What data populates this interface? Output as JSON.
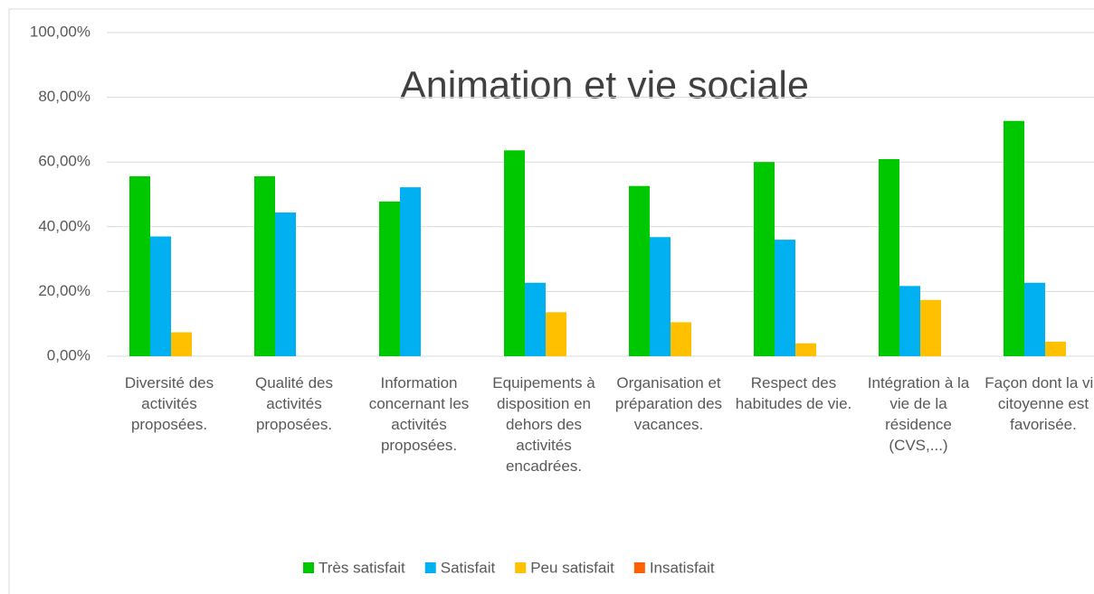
{
  "chart_data": {
    "type": "bar",
    "title": "Animation et vie sociale",
    "categories": [
      "Diversité des activités proposées.",
      "Qualité des activités proposées.",
      "Information concernant les activités proposées.",
      "Equipements à disposition en dehors des activités encadrées.",
      "Organisation et préparation des vacances.",
      "Respect des habitudes de vie.",
      "Intégration à la vie de la résidence (CVS,...)",
      "Façon dont la vie citoyenne est favorisée."
    ],
    "series": [
      {
        "name": "Très satisfait",
        "color": "#00c800",
        "values": [
          55.6,
          55.6,
          47.8,
          63.6,
          52.6,
          60.0,
          60.9,
          72.7
        ]
      },
      {
        "name": "Satisfait",
        "color": "#00b0f0",
        "values": [
          37.0,
          44.4,
          52.2,
          22.7,
          36.8,
          36.0,
          21.7,
          22.7
        ]
      },
      {
        "name": "Peu satisfait",
        "color": "#ffc000",
        "values": [
          7.4,
          0,
          0,
          13.6,
          10.5,
          4.0,
          17.4,
          4.5
        ]
      },
      {
        "name": "Insatisfait",
        "color": "#ff6000",
        "values": [
          0,
          0,
          0,
          0,
          0,
          0,
          0,
          0
        ]
      }
    ],
    "ylim": [
      0,
      100
    ],
    "yticks": [
      {
        "value": 0,
        "label": "0,00%"
      },
      {
        "value": 20,
        "label": "20,00%"
      },
      {
        "value": 40,
        "label": "40,00%"
      },
      {
        "value": 60,
        "label": "60,00%"
      },
      {
        "value": 80,
        "label": "80,00%"
      },
      {
        "value": 100,
        "label": "100,00%"
      }
    ],
    "grid": true,
    "legend": "bottom"
  }
}
